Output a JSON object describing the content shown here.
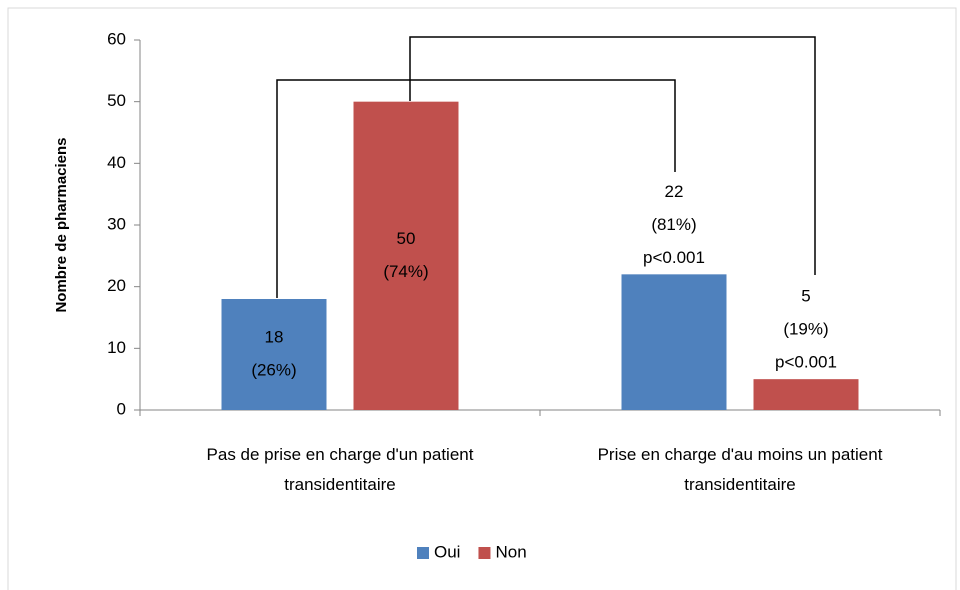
{
  "chart_data": {
    "type": "bar",
    "y_label": "Nombre de pharmaciens",
    "categories": [
      "Pas de prise en charge d'un patient transidentitaire",
      "Prise en charge d'au moins un patient transidentitaire"
    ],
    "series": [
      {
        "name": "Oui",
        "color": "#4f81bd",
        "values": [
          18,
          22
        ],
        "value_labels": [
          [
            "18",
            "(26%)"
          ],
          [
            "22",
            "(81%)",
            "p<0.001"
          ]
        ]
      },
      {
        "name": "Non",
        "color": "#c0504d",
        "values": [
          50,
          5
        ],
        "value_labels": [
          [
            "50",
            "(74%)"
          ],
          [
            "5",
            "(19%)",
            "p<0.001"
          ]
        ]
      }
    ],
    "ylim": [
      0,
      60
    ],
    "yticks": [
      0,
      10,
      20,
      30,
      40,
      50,
      60
    ],
    "grid": false,
    "legend": "bottom"
  }
}
